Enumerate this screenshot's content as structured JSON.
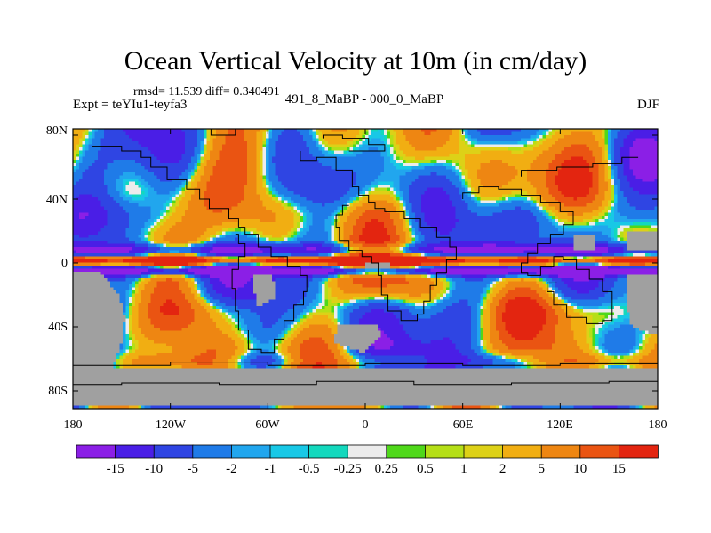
{
  "title": "Ocean Vertical Velocity at 10m (in cm/day)",
  "stats": "rmsd= 11.539 diff= 0.340491",
  "experiment": "Expt = teYIu1-teyfa3",
  "subtitle": "491_8_MaBP - 000_0_MaBP",
  "season": "DJF",
  "axes": {
    "lat_labels": [
      "80N",
      "40N",
      "0",
      "40S",
      "80S"
    ],
    "lon_labels": [
      "180",
      "120W",
      "60W",
      "0",
      "60E",
      "120E",
      "180"
    ]
  },
  "colorbar": {
    "labels": [
      "-15",
      "-10",
      "-5",
      "-2",
      "-1",
      "-0.5",
      "-0.25",
      "0.25",
      "0.5",
      "1",
      "2",
      "5",
      "10",
      "15"
    ],
    "colors": [
      "#8b1fe6",
      "#4a1ee6",
      "#2f45e3",
      "#1f7be8",
      "#21a6ee",
      "#18c8e6",
      "#13d8bd",
      "#ececec",
      "#4fd81a",
      "#b5df17",
      "#ddd117",
      "#f1ae12",
      "#ee8612",
      "#ea5412",
      "#e32510"
    ],
    "land_color": "#a0a0a0"
  }
}
